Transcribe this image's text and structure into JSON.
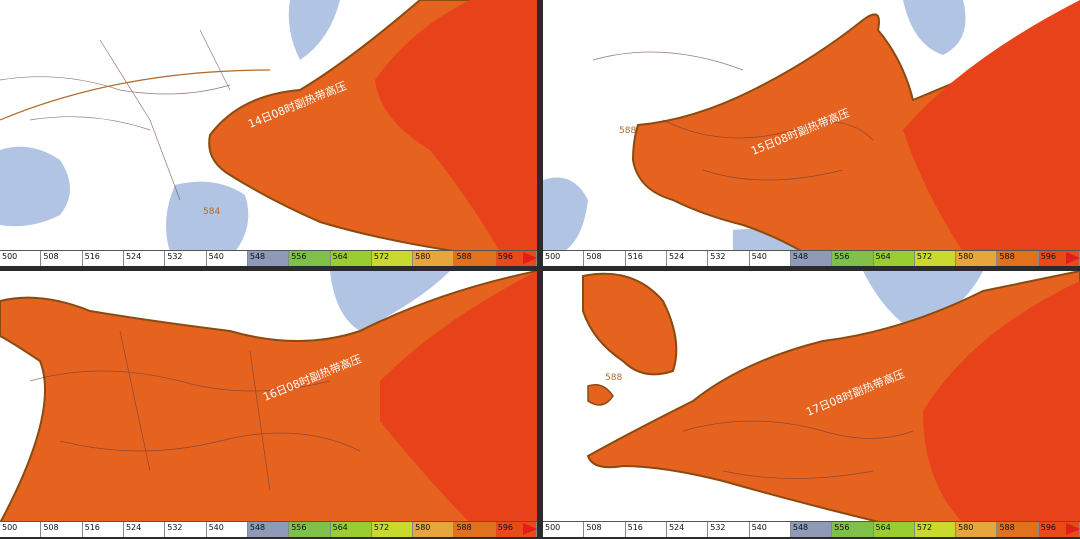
{
  "panels": [
    {
      "label": "14日08时副热带高压",
      "contour": "584",
      "isolated_label": "584"
    },
    {
      "label": "15日08时副热带高压",
      "contour": "588",
      "isolated_label": "588"
    },
    {
      "label": "16日08时副热带高压",
      "contour": "",
      "isolated_label": ""
    },
    {
      "label": "17日08时副热带高压",
      "contour": "588",
      "isolated_label": "588"
    }
  ],
  "legend": {
    "ticks": [
      "500",
      "508",
      "516",
      "524",
      "532",
      "540",
      "548",
      "556",
      "564",
      "572",
      "580",
      "588",
      "596"
    ],
    "colors": [
      "#ffffff",
      "#ffffff",
      "#ffffff",
      "#ffffff",
      "#ffffff",
      "#ffffff",
      "#8e9ab8",
      "#7fc04a",
      "#9acd32",
      "#c9d92e",
      "#e7a63c",
      "#e2711d",
      "#e84a1a"
    ]
  },
  "colors": {
    "sea": "#b1c4e3",
    "high_588": "#e5621f",
    "high_596": "#e8421a",
    "border": "#8a4b10",
    "land": "#ffffff"
  }
}
